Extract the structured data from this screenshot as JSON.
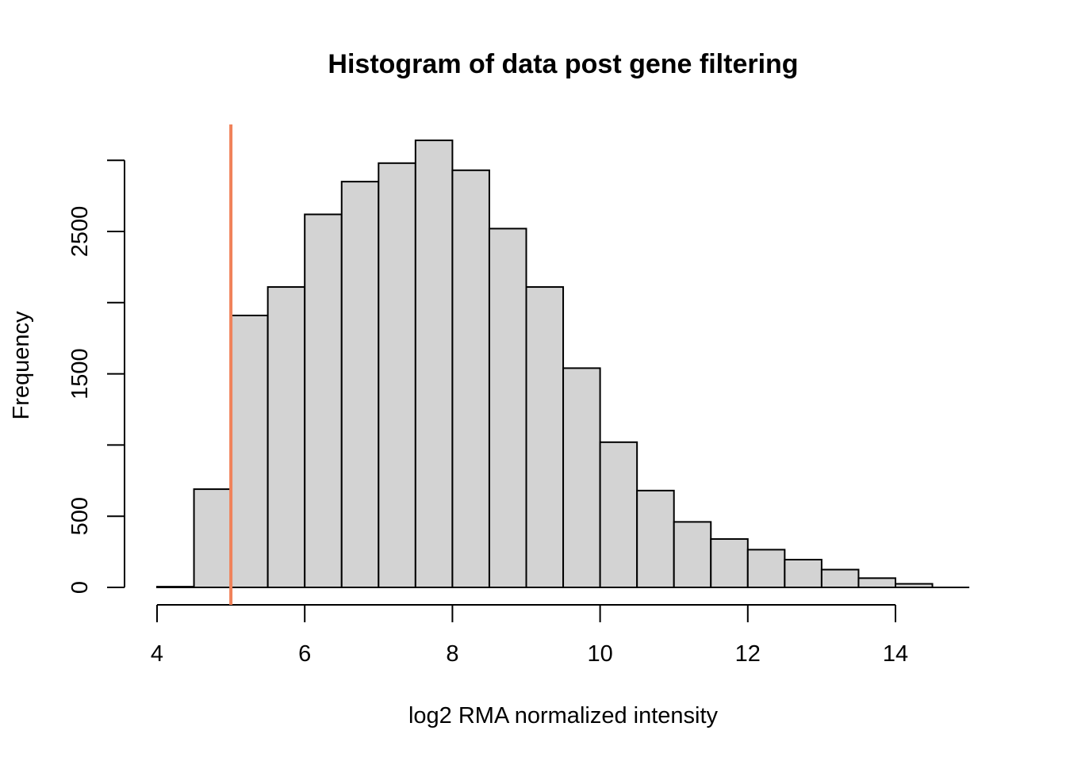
{
  "chart_data": {
    "type": "bar",
    "title": "Histogram of data post gene filtering",
    "xlabel": "log2 RMA normalized intensity",
    "ylabel": "Frequency",
    "xlim": [
      4,
      15
    ],
    "ylim": [
      0,
      3250
    ],
    "x_ticks": [
      4,
      6,
      8,
      10,
      12,
      14
    ],
    "x_tick_labels": [
      "4",
      "6",
      "8",
      "10",
      "12",
      "14"
    ],
    "y_ticks": [
      0,
      500,
      1000,
      1500,
      2000,
      2500,
      3000
    ],
    "y_tick_labels": [
      "0",
      "500",
      "",
      "1500",
      "",
      "2500",
      ""
    ],
    "bin_width": 0.5,
    "bins": [
      {
        "x0": 4.0,
        "x1": 4.5,
        "count": 5
      },
      {
        "x0": 4.5,
        "x1": 5.0,
        "count": 690
      },
      {
        "x0": 5.0,
        "x1": 5.5,
        "count": 1910
      },
      {
        "x0": 5.5,
        "x1": 6.0,
        "count": 2110
      },
      {
        "x0": 6.0,
        "x1": 6.5,
        "count": 2620
      },
      {
        "x0": 6.5,
        "x1": 7.0,
        "count": 2850
      },
      {
        "x0": 7.0,
        "x1": 7.5,
        "count": 2980
      },
      {
        "x0": 7.5,
        "x1": 8.0,
        "count": 3140
      },
      {
        "x0": 8.0,
        "x1": 8.5,
        "count": 2930
      },
      {
        "x0": 8.5,
        "x1": 9.0,
        "count": 2520
      },
      {
        "x0": 9.0,
        "x1": 9.5,
        "count": 2110
      },
      {
        "x0": 9.5,
        "x1": 10.0,
        "count": 1540
      },
      {
        "x0": 10.0,
        "x1": 10.5,
        "count": 1020
      },
      {
        "x0": 10.5,
        "x1": 11.0,
        "count": 680
      },
      {
        "x0": 11.0,
        "x1": 11.5,
        "count": 460
      },
      {
        "x0": 11.5,
        "x1": 12.0,
        "count": 340
      },
      {
        "x0": 12.0,
        "x1": 12.5,
        "count": 265
      },
      {
        "x0": 12.5,
        "x1": 13.0,
        "count": 195
      },
      {
        "x0": 13.0,
        "x1": 13.5,
        "count": 125
      },
      {
        "x0": 13.5,
        "x1": 14.0,
        "count": 65
      },
      {
        "x0": 14.0,
        "x1": 14.5,
        "count": 25
      }
    ],
    "reference_line": {
      "x": 5,
      "color": "#f0825a"
    },
    "bar_fill": "#d3d3d3",
    "bar_stroke": "#000000"
  }
}
